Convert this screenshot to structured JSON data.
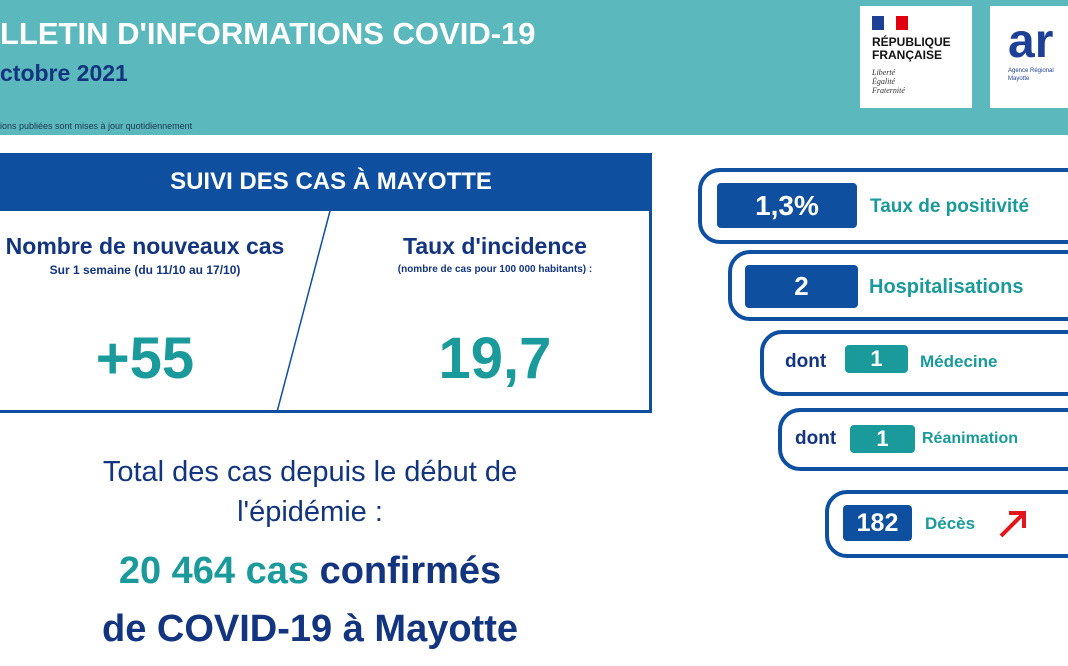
{
  "header": {
    "title": "LLETIN D'INFORMATIONS COVID-19",
    "date": "ctobre 2021",
    "note": "ions publiées sont mises à jour quotidiennement",
    "logo_rf": {
      "name": "RÉPUBLIQUE FRANÇAISE",
      "motto": [
        "Liberté",
        "Égalité",
        "Fraternité"
      ]
    },
    "logo_ars": {
      "mark": "ar",
      "text": "Agence Régional",
      "region": "Mayotte"
    }
  },
  "suivi": {
    "title": "SUIVI DES CAS À MAYOTTE",
    "left": {
      "label": "Nombre de nouveaux cas",
      "sub": "Sur 1 semaine (du 11/10 au 17/10)",
      "value": "+55"
    },
    "right": {
      "label": "Taux d'incidence",
      "sub": "(nombre de cas pour 100 000 habitants) :",
      "value": "19,7"
    }
  },
  "total": {
    "intro": "Total des cas depuis le début de l'épidémie :",
    "count": "20 464 cas",
    "line1": "confirmés",
    "line2": "de COVID-19 à Mayotte"
  },
  "indicators": [
    {
      "value": "1,3%",
      "label": "Taux de positivité"
    },
    {
      "value": "2",
      "label": "Hospitalisations"
    },
    {
      "prefix": "dont",
      "value": "1",
      "label": "Médecine"
    },
    {
      "prefix": "dont",
      "value": "1",
      "label": "Réanimation"
    },
    {
      "value": "182",
      "label": "Décès"
    }
  ]
}
